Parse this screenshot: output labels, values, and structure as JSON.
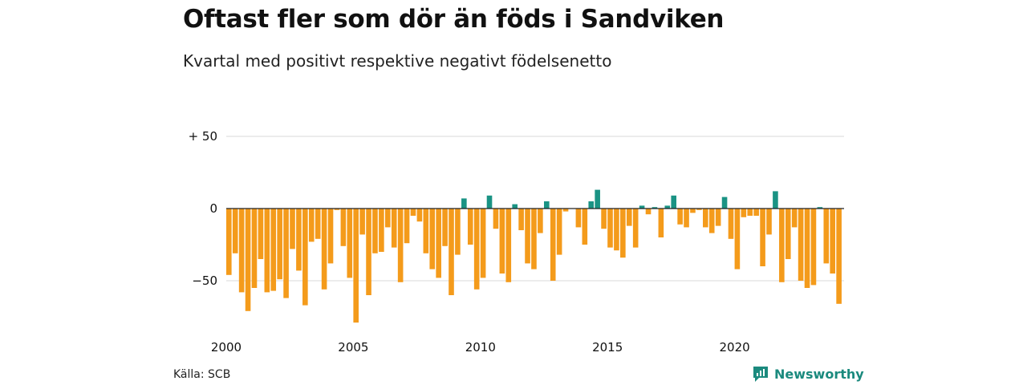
{
  "chart_data": {
    "type": "bar",
    "title": "Oftast fler som dör än föds i Sandviken",
    "subtitle": "Kvartal med positivt respektive negativt födelsenetto",
    "xlabel": "",
    "ylabel": "",
    "x_start_year": 2000,
    "periods_per_year": 4,
    "x_tick_labels": [
      "2000",
      "2005",
      "2010",
      "2015",
      "2020"
    ],
    "y_ticks": [
      {
        "value": 50,
        "label": "+ 50"
      },
      {
        "value": 0,
        "label": "0"
      },
      {
        "value": -50,
        "label": "−50"
      }
    ],
    "ylim": [
      -80,
      50
    ],
    "grid": true,
    "colors": {
      "positive": "#1a9384",
      "negative": "#f49b1b",
      "grid": "#d9d9d9",
      "zero_line": "#222222"
    },
    "values": [
      -46,
      -31,
      -58,
      -71,
      -55,
      -35,
      -58,
      -57,
      -49,
      -62,
      -28,
      -43,
      -67,
      -23,
      -21,
      -56,
      -38,
      -1,
      -26,
      -48,
      -79,
      -18,
      -60,
      -31,
      -30,
      -13,
      -27,
      -51,
      -24,
      -5,
      -9,
      -31,
      -42,
      -48,
      -26,
      -60,
      -32,
      7,
      -25,
      -56,
      -48,
      9,
      -14,
      -45,
      -51,
      3,
      -15,
      -38,
      -42,
      -17,
      5,
      -50,
      -32,
      -2,
      0,
      -13,
      -25,
      5,
      13,
      -14,
      -27,
      -29,
      -34,
      -12,
      -27,
      2,
      -4,
      1,
      -20,
      2,
      9,
      -11,
      -13,
      -3,
      -1,
      -13,
      -17,
      -12,
      8,
      -21,
      -42,
      -6,
      -5,
      -5,
      -40,
      -18,
      12,
      -51,
      -35,
      -13,
      -50,
      -55,
      -53,
      1,
      -38,
      -45,
      -66
    ]
  },
  "footer": {
    "source": "Källa: SCB",
    "brand": "Newsworthy"
  }
}
